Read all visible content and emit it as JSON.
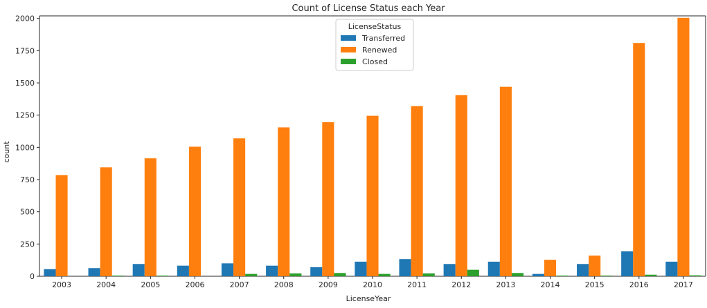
{
  "chart_data": {
    "type": "bar",
    "title": "Count of License Status each Year",
    "xlabel": "LicenseYear",
    "ylabel": "count",
    "ylim": [
      0,
      2020
    ],
    "yticks": [
      0,
      250,
      500,
      750,
      1000,
      1250,
      1500,
      1750,
      2000
    ],
    "grid": false,
    "legend_placement": "top-center",
    "legend_title": "LicenseStatus",
    "categories": [
      "2003",
      "2004",
      "2005",
      "2006",
      "2007",
      "2008",
      "2009",
      "2010",
      "2011",
      "2012",
      "2013",
      "2014",
      "2015",
      "2016",
      "2017"
    ],
    "series": [
      {
        "name": "Transferred",
        "color": "#1f77b4",
        "values": [
          55,
          63,
          95,
          82,
          100,
          82,
          70,
          113,
          133,
          95,
          113,
          18,
          95,
          193,
          113
        ]
      },
      {
        "name": "Renewed",
        "color": "#ff7f0e",
        "values": [
          785,
          845,
          915,
          1005,
          1070,
          1155,
          1195,
          1245,
          1320,
          1405,
          1470,
          128,
          160,
          1810,
          2005
        ]
      },
      {
        "name": "Closed",
        "color": "#2ca02c",
        "values": [
          0,
          5,
          5,
          0,
          18,
          22,
          25,
          18,
          22,
          50,
          25,
          5,
          5,
          12,
          7
        ]
      }
    ]
  }
}
